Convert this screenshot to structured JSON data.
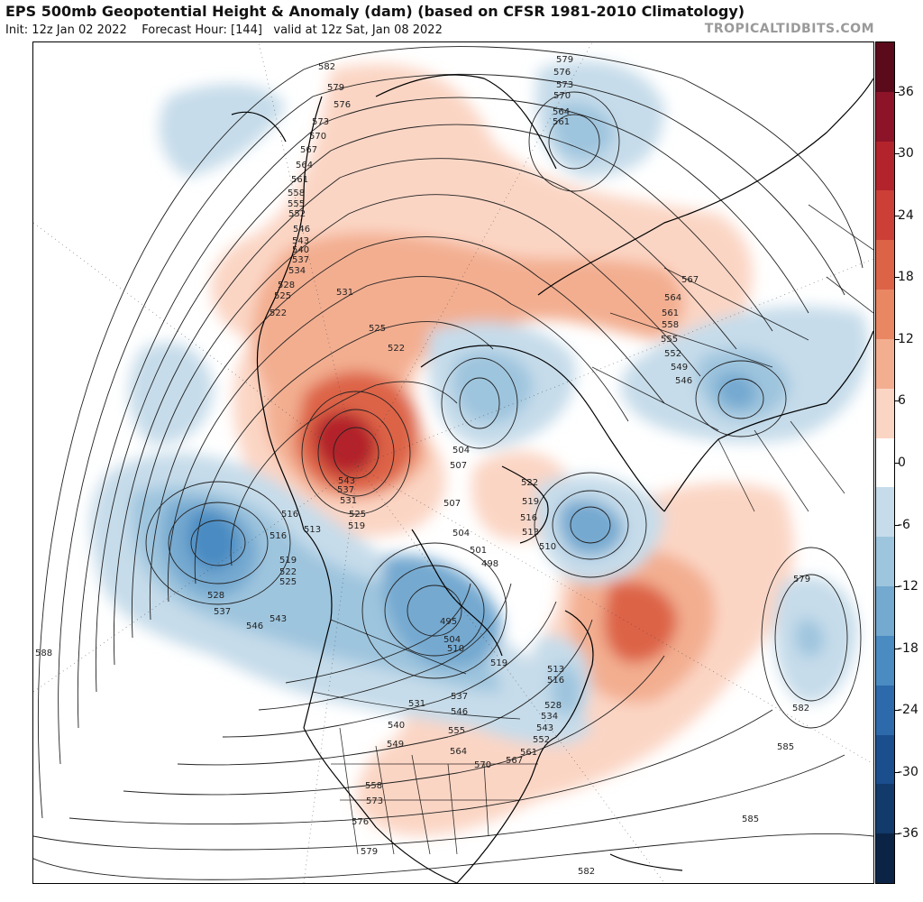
{
  "title": "EPS 500mb Geopotential Height & Anomaly (dam) (based on CFSR 1981-2010 Climatology)",
  "subtitle": {
    "init": "Init: 12z Jan 02 2022",
    "forecast_hour": "Forecast Hour: [144]",
    "valid": "valid at 12z Sat, Jan 08 2022"
  },
  "brand": "TROPICALTIDBITS.COM",
  "colorbar": {
    "labels": [
      "36",
      "30",
      "24",
      "18",
      "12",
      "6",
      "0",
      "-6",
      "-12",
      "-18",
      "-24",
      "-30",
      "-36"
    ],
    "colors": [
      "#5b0a1c",
      "#8d1328",
      "#b3232c",
      "#cc3f37",
      "#dd6347",
      "#e98763",
      "#f3ae90",
      "#fbd5c4",
      "#ffffff",
      "#c6dcea",
      "#9ec5de",
      "#74a9d0",
      "#4a8bc2",
      "#2c6aab",
      "#1b4e8d",
      "#123a6a",
      "#0b2446"
    ]
  },
  "height_contour_labels": [
    "579",
    "576",
    "573",
    "570",
    "564",
    "561",
    "582",
    "579",
    "576",
    "573",
    "570",
    "567",
    "564",
    "561",
    "558",
    "555",
    "552",
    "546",
    "543",
    "540",
    "537",
    "534",
    "528",
    "525",
    "522",
    "531",
    "525",
    "522",
    "567",
    "564",
    "561",
    "558",
    "555",
    "552",
    "549",
    "546",
    "504",
    "507",
    "522",
    "519",
    "516",
    "513",
    "510",
    "507",
    "504",
    "501",
    "498",
    "516",
    "513",
    "516",
    "519",
    "522",
    "525",
    "528",
    "537",
    "546",
    "543",
    "537",
    "531",
    "525",
    "519",
    "543",
    "495",
    "504",
    "510",
    "519",
    "513",
    "516",
    "528",
    "534",
    "543",
    "552",
    "561",
    "567",
    "570",
    "564",
    "555",
    "546",
    "537",
    "531",
    "540",
    "549",
    "558",
    "573",
    "576",
    "579",
    "582",
    "588",
    "585",
    "585",
    "582",
    "579",
    "576"
  ]
}
